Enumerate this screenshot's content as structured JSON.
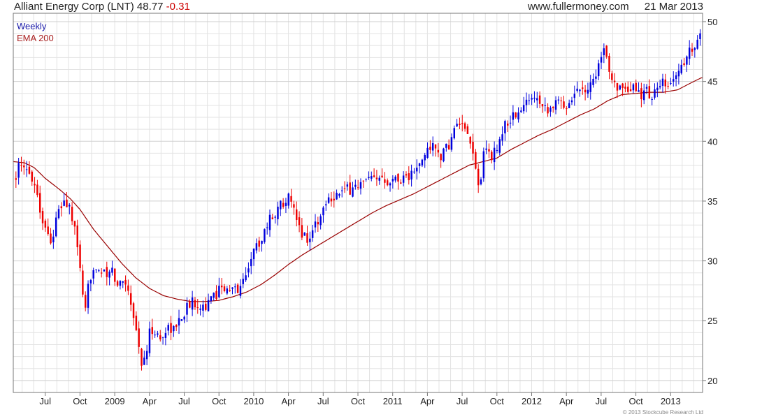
{
  "header": {
    "title": "Alliant Energy Corp (LNT)",
    "price": "48.77",
    "change": "-0.31",
    "site": "www.fullermoney.com",
    "date": "21 Mar 2013"
  },
  "copyright": "© 2013 Stockcube Research Ltd",
  "colors": {
    "up": "#0000dd",
    "down": "#ee0000",
    "ema": "#990000",
    "grid": "#e3e3e3",
    "frame": "#777777"
  },
  "chart_data": {
    "type": "candlestick",
    "legend": [
      {
        "label": "Weekly",
        "color": "#1a1aaa"
      },
      {
        "label": "EMA 200",
        "color": "#aa2222"
      }
    ],
    "legend_position": "top-left",
    "grid": true,
    "ylim": [
      19,
      50.7
    ],
    "yticks": [
      20,
      25,
      30,
      35,
      40,
      45,
      50
    ],
    "x_range": [
      2008.27,
      2013.23
    ],
    "xticks": [
      {
        "label": "Jul",
        "t": 2008.5
      },
      {
        "label": "Oct",
        "t": 2008.75
      },
      {
        "label": "2009",
        "t": 2009.0
      },
      {
        "label": "Apr",
        "t": 2009.25
      },
      {
        "label": "Jul",
        "t": 2009.5
      },
      {
        "label": "Oct",
        "t": 2009.75
      },
      {
        "label": "2010",
        "t": 2010.0
      },
      {
        "label": "Apr",
        "t": 2010.25
      },
      {
        "label": "Jul",
        "t": 2010.5
      },
      {
        "label": "Oct",
        "t": 2010.75
      },
      {
        "label": "2011",
        "t": 2011.0
      },
      {
        "label": "Apr",
        "t": 2011.25
      },
      {
        "label": "Jul",
        "t": 2011.5
      },
      {
        "label": "Oct",
        "t": 2011.75
      },
      {
        "label": "2012",
        "t": 2012.0
      },
      {
        "label": "Apr",
        "t": 2012.25
      },
      {
        "label": "Jul",
        "t": 2012.5
      },
      {
        "label": "Oct",
        "t": 2012.75
      },
      {
        "label": "2013",
        "t": 2013.0
      }
    ],
    "price_path": [
      [
        2008.27,
        36.8
      ],
      [
        2008.31,
        37.8
      ],
      [
        2008.35,
        37.5
      ],
      [
        2008.4,
        37.3
      ],
      [
        2008.44,
        35.8
      ],
      [
        2008.47,
        33.8
      ],
      [
        2008.52,
        32.2
      ],
      [
        2008.55,
        31.7
      ],
      [
        2008.58,
        33.5
      ],
      [
        2008.63,
        35.0
      ],
      [
        2008.67,
        34.6
      ],
      [
        2008.7,
        33.2
      ],
      [
        2008.73,
        31.2
      ],
      [
        2008.76,
        28.8
      ],
      [
        2008.78,
        24.6
      ],
      [
        2008.81,
        27.8
      ],
      [
        2008.85,
        29.8
      ],
      [
        2008.89,
        29.3
      ],
      [
        2008.94,
        28.6
      ],
      [
        2008.98,
        29.2
      ],
      [
        2009.02,
        27.8
      ],
      [
        2009.06,
        28.6
      ],
      [
        2009.1,
        27.6
      ],
      [
        2009.13,
        25.8
      ],
      [
        2009.16,
        23.8
      ],
      [
        2009.2,
        21.0
      ],
      [
        2009.23,
        22.5
      ],
      [
        2009.26,
        24.5
      ],
      [
        2009.3,
        23.8
      ],
      [
        2009.34,
        23.4
      ],
      [
        2009.38,
        24.6
      ],
      [
        2009.43,
        24.2
      ],
      [
        2009.48,
        25.4
      ],
      [
        2009.53,
        26.3
      ],
      [
        2009.57,
        26.6
      ],
      [
        2009.62,
        26.4
      ],
      [
        2009.66,
        26.2
      ],
      [
        2009.7,
        26.8
      ],
      [
        2009.74,
        27.4
      ],
      [
        2009.77,
        28.2
      ],
      [
        2009.81,
        27.3
      ],
      [
        2009.86,
        27.6
      ],
      [
        2009.91,
        27.8
      ],
      [
        2009.94,
        28.8
      ],
      [
        2009.98,
        30.4
      ],
      [
        2010.02,
        31.2
      ],
      [
        2010.06,
        32.0
      ],
      [
        2010.1,
        33.2
      ],
      [
        2010.15,
        34.0
      ],
      [
        2010.19,
        34.6
      ],
      [
        2010.24,
        35.5
      ],
      [
        2010.28,
        34.4
      ],
      [
        2010.32,
        32.8
      ],
      [
        2010.36,
        32.2
      ],
      [
        2010.4,
        31.7
      ],
      [
        2010.44,
        33.2
      ],
      [
        2010.48,
        33.5
      ],
      [
        2010.52,
        35.2
      ],
      [
        2010.56,
        35.4
      ],
      [
        2010.6,
        35.6
      ],
      [
        2010.66,
        35.8
      ],
      [
        2010.72,
        36.2
      ],
      [
        2010.78,
        36.4
      ],
      [
        2010.84,
        36.8
      ],
      [
        2010.88,
        36.5
      ],
      [
        2010.92,
        37.2
      ],
      [
        2010.96,
        36.8
      ],
      [
        2011.0,
        37.0
      ],
      [
        2011.04,
        36.7
      ],
      [
        2011.08,
        37.2
      ],
      [
        2011.12,
        37.0
      ],
      [
        2011.16,
        37.6
      ],
      [
        2011.2,
        37.9
      ],
      [
        2011.24,
        39.2
      ],
      [
        2011.28,
        39.7
      ],
      [
        2011.32,
        39.0
      ],
      [
        2011.36,
        38.8
      ],
      [
        2011.4,
        39.6
      ],
      [
        2011.44,
        40.8
      ],
      [
        2011.48,
        41.6
      ],
      [
        2011.52,
        40.6
      ],
      [
        2011.56,
        39.6
      ],
      [
        2011.59,
        38.4
      ],
      [
        2011.62,
        35.8
      ],
      [
        2011.65,
        38.6
      ],
      [
        2011.68,
        39.4
      ],
      [
        2011.72,
        38.6
      ],
      [
        2011.76,
        39.9
      ],
      [
        2011.8,
        41.2
      ],
      [
        2011.84,
        41.8
      ],
      [
        2011.88,
        42.2
      ],
      [
        2011.92,
        42.4
      ],
      [
        2011.96,
        43.2
      ],
      [
        2012.0,
        43.8
      ],
      [
        2012.04,
        44.0
      ],
      [
        2012.08,
        43.0
      ],
      [
        2012.12,
        42.8
      ],
      [
        2012.16,
        43.0
      ],
      [
        2012.2,
        43.3
      ],
      [
        2012.24,
        43.0
      ],
      [
        2012.28,
        43.5
      ],
      [
        2012.32,
        44.2
      ],
      [
        2012.36,
        44.8
      ],
      [
        2012.4,
        44.2
      ],
      [
        2012.44,
        45.2
      ],
      [
        2012.48,
        46.3
      ],
      [
        2012.52,
        47.3
      ],
      [
        2012.55,
        46.6
      ],
      [
        2012.58,
        45.4
      ],
      [
        2012.62,
        44.6
      ],
      [
        2012.66,
        44.0
      ],
      [
        2012.7,
        43.8
      ],
      [
        2012.74,
        44.6
      ],
      [
        2012.78,
        43.9
      ],
      [
        2012.82,
        44.2
      ],
      [
        2012.86,
        43.8
      ],
      [
        2012.9,
        44.2
      ],
      [
        2012.94,
        44.8
      ],
      [
        2012.98,
        44.2
      ],
      [
        2013.02,
        45.4
      ],
      [
        2013.06,
        45.9
      ],
      [
        2013.1,
        46.7
      ],
      [
        2013.14,
        47.6
      ],
      [
        2013.18,
        48.4
      ],
      [
        2013.22,
        48.77
      ]
    ],
    "ema_path": [
      [
        2008.27,
        38.3
      ],
      [
        2008.35,
        38.2
      ],
      [
        2008.42,
        37.8
      ],
      [
        2008.5,
        36.9
      ],
      [
        2008.6,
        36.0
      ],
      [
        2008.68,
        35.2
      ],
      [
        2008.75,
        34.3
      ],
      [
        2008.85,
        32.6
      ],
      [
        2008.95,
        31.2
      ],
      [
        2009.05,
        29.8
      ],
      [
        2009.15,
        28.6
      ],
      [
        2009.25,
        27.7
      ],
      [
        2009.35,
        27.1
      ],
      [
        2009.45,
        26.8
      ],
      [
        2009.55,
        26.6
      ],
      [
        2009.65,
        26.6
      ],
      [
        2009.75,
        26.7
      ],
      [
        2009.85,
        27.0
      ],
      [
        2009.95,
        27.4
      ],
      [
        2010.05,
        28.0
      ],
      [
        2010.15,
        28.8
      ],
      [
        2010.25,
        29.7
      ],
      [
        2010.35,
        30.5
      ],
      [
        2010.45,
        31.2
      ],
      [
        2010.55,
        31.9
      ],
      [
        2010.65,
        32.6
      ],
      [
        2010.75,
        33.3
      ],
      [
        2010.85,
        34.0
      ],
      [
        2010.95,
        34.6
      ],
      [
        2011.05,
        35.1
      ],
      [
        2011.15,
        35.6
      ],
      [
        2011.25,
        36.2
      ],
      [
        2011.35,
        36.8
      ],
      [
        2011.45,
        37.4
      ],
      [
        2011.55,
        38.0
      ],
      [
        2011.65,
        38.3
      ],
      [
        2011.75,
        38.6
      ],
      [
        2011.85,
        39.3
      ],
      [
        2011.95,
        39.9
      ],
      [
        2012.05,
        40.5
      ],
      [
        2012.15,
        41.0
      ],
      [
        2012.25,
        41.6
      ],
      [
        2012.35,
        42.2
      ],
      [
        2012.45,
        42.7
      ],
      [
        2012.55,
        43.4
      ],
      [
        2012.65,
        43.9
      ],
      [
        2012.75,
        44.0
      ],
      [
        2012.85,
        44.1
      ],
      [
        2012.95,
        44.1
      ],
      [
        2013.05,
        44.3
      ],
      [
        2013.15,
        44.9
      ],
      [
        2013.22,
        45.3
      ]
    ],
    "last_close": 48.77
  }
}
